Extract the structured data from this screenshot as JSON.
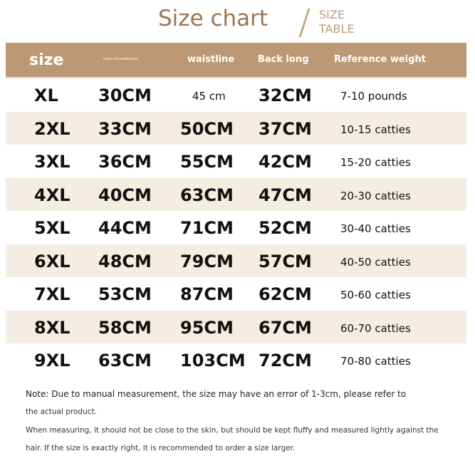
{
  "title": "Size chart",
  "subtitle_line1": "SIZE",
  "subtitle_line2": "TABLE",
  "headers": [
    "size",
    "neck circumference",
    "waistline",
    "Back long",
    "Reference weight"
  ],
  "rows": [
    [
      "XL",
      "30CM",
      "45 cm",
      "32CM",
      "7-10 pounds"
    ],
    [
      "2XL",
      "33CM",
      "50CM",
      "37CM",
      "10-15 catties"
    ],
    [
      "3XL",
      "36CM",
      "55CM",
      "42CM",
      "15-20 catties"
    ],
    [
      "4XL",
      "40CM",
      "63CM",
      "47CM",
      "20-30 catties"
    ],
    [
      "5XL",
      "44CM",
      "71CM",
      "52CM",
      "30-40 catties"
    ],
    [
      "6XL",
      "48CM",
      "79CM",
      "57CM",
      "40-50 catties"
    ],
    [
      "7XL",
      "53CM",
      "87CM",
      "62CM",
      "50-60 catties"
    ],
    [
      "8XL",
      "58CM",
      "95CM",
      "67CM",
      "60-70 catties"
    ],
    [
      "9XL",
      "63CM",
      "103CM",
      "72CM",
      "70-80 catties"
    ]
  ],
  "notes": [
    "Note: Due to manual measurement, the size may have an error of 1-3cm, please refer to",
    "the actual product.",
    "When measuring, it should not be close to the skin, but should be kept fluffy and measured lightly against the",
    "hair. If the size is exactly right, it is recommended to order a size larger."
  ],
  "colors": {
    "header_bg": "#bc9974",
    "title": "#9a7652",
    "alt_row": "#f4ede4"
  }
}
